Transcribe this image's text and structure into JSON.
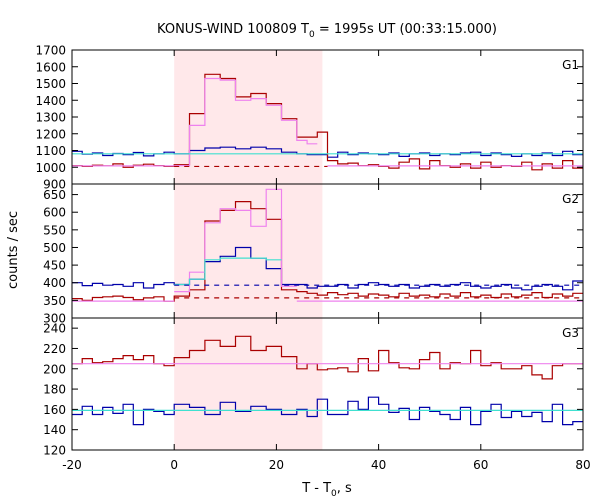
{
  "chart_data": {
    "type": "line",
    "title": "KONUS-WIND 100809 T",
    "title_sub": "0",
    "title_rest": " = 1995s UT (00:33:15.000)",
    "xlabel_main": "T - T",
    "xlabel_sub": "0",
    "xlabel_rest": ", s",
    "ylabel": "counts / sec",
    "xlim": [
      -20,
      80
    ],
    "x_ticks": [
      "-20",
      "0",
      "20",
      "40",
      "60",
      "80"
    ],
    "shaded_interval": [
      0,
      29
    ],
    "bin_edges": [
      -20,
      -18,
      -16,
      -14,
      -12,
      -10,
      -8,
      -6,
      -4,
      -2,
      0,
      3,
      6,
      9,
      12,
      15,
      18,
      21,
      24,
      26,
      28,
      30,
      32,
      34,
      36,
      38,
      40,
      42,
      44,
      46,
      48,
      50,
      52,
      54,
      56,
      58,
      60,
      62,
      64,
      66,
      68,
      70,
      72,
      74,
      76,
      78,
      80
    ],
    "panels": [
      {
        "label": "G1",
        "ylim": [
          900,
          1700
        ],
        "y_ticks": [
          "900",
          "1000",
          "1100",
          "1200",
          "1300",
          "1400",
          "1500",
          "1600",
          "1700"
        ],
        "series": [
          {
            "color": "#0000aa",
            "values": [
              1095,
              1078,
              1085,
              1070,
              1082,
              1075,
              1088,
              1068,
              1080,
              1090,
              1080,
              1100,
              1115,
              1120,
              1110,
              1120,
              1110,
              1090,
              1080,
              1075,
              1075,
              1060,
              1090,
              1075,
              1085,
              1080,
              1075,
              1085,
              1065,
              1080,
              1085,
              1070,
              1080,
              1075,
              1085,
              1090,
              1070,
              1085,
              1075,
              1065,
              1080,
              1070,
              1085,
              1070,
              1095,
              1075
            ]
          },
          {
            "color": "#aa0000",
            "values": [
              1010,
              1005,
              1012,
              1008,
              1020,
              1000,
              1012,
              1018,
              1010,
              1005,
              1015,
              1320,
              1555,
              1530,
              1420,
              1440,
              1380,
              1290,
              1180,
              1180,
              1210,
              1040,
              1020,
              1025,
              1010,
              1015,
              1005,
              995,
              1030,
              1050,
              990,
              1040,
              1010,
              1000,
              1020,
              995,
              1030,
              1000,
              1010,
              1005,
              1030,
              985,
              1020,
              995,
              1040,
              995
            ]
          },
          {
            "color": "#ee82ee",
            "values": [
              null,
              null,
              null,
              null,
              null,
              null,
              null,
              null,
              null,
              null,
              1010,
              1250,
              1530,
              1520,
              1400,
              1410,
              1370,
              1280,
              1160,
              1140,
              null,
              null,
              null,
              null,
              null,
              null,
              null,
              null,
              null,
              null,
              null,
              null,
              null,
              null,
              null,
              null,
              null,
              null,
              null,
              null,
              null,
              null,
              null,
              null,
              null,
              null
            ]
          },
          {
            "color": "#ee82ee",
            "values": [
              1008,
              1008,
              1008,
              1008,
              1008,
              1008,
              1008,
              1008,
              1008,
              1008,
              null,
              null,
              null,
              null,
              null,
              null,
              null,
              null,
              null,
              null,
              null,
              1008,
              1008,
              1008,
              1008,
              1008,
              1008,
              1008,
              1008,
              1008,
              1008,
              1008,
              1008,
              1008,
              1008,
              1008,
              1008,
              1008,
              1008,
              1008,
              1008,
              1008,
              1008,
              1008,
              1008,
              1008
            ]
          },
          {
            "color": "#40e0d0",
            "values": [
              1080,
              1080,
              1080,
              1080,
              1080,
              1080,
              1080,
              1080,
              1080,
              1080,
              1080,
              1080,
              1080,
              1080,
              1080,
              1080,
              1080,
              1080,
              1080,
              1080,
              1080,
              1080,
              1080,
              1080,
              1080,
              1080,
              1080,
              1080,
              1080,
              1080,
              1080,
              1080,
              1080,
              1080,
              1080,
              1080,
              1080,
              1080,
              1080,
              1080,
              1080,
              1080,
              1080,
              1080,
              1080,
              1080
            ]
          }
        ],
        "dashed": [
          {
            "color": "#aa0000",
            "value": 1005,
            "from": 0,
            "to": 30
          }
        ]
      },
      {
        "label": "G2",
        "ylim": [
          300,
          680
        ],
        "y_ticks": [
          "300",
          "350",
          "400",
          "450",
          "500",
          "550",
          "600",
          "650"
        ],
        "series": [
          {
            "color": "#0000aa",
            "values": [
              400,
              392,
              398,
              393,
              395,
              390,
              400,
              385,
              395,
              400,
              395,
              410,
              460,
              475,
              500,
              470,
              440,
              395,
              395,
              385,
              390,
              390,
              395,
              385,
              395,
              400,
              395,
              390,
              395,
              385,
              390,
              395,
              390,
              395,
              400,
              390,
              385,
              390,
              395,
              385,
              380,
              390,
              395,
              390,
              380,
              405
            ]
          },
          {
            "color": "#aa0000",
            "values": [
              355,
              350,
              358,
              360,
              362,
              358,
              352,
              357,
              360,
              348,
              362,
              380,
              575,
              605,
              630,
              610,
              580,
              380,
              375,
              370,
              365,
              372,
              366,
              370,
              362,
              368,
              365,
              360,
              370,
              362,
              365,
              360,
              368,
              362,
              372,
              360,
              365,
              358,
              368,
              360,
              365,
              372,
              358,
              368,
              362,
              370
            ]
          },
          {
            "color": "#ee82ee",
            "values": [
              null,
              null,
              null,
              null,
              null,
              null,
              null,
              null,
              null,
              null,
              375,
              430,
              570,
              610,
              605,
              560,
              665,
              390,
              null,
              null,
              null,
              null,
              null,
              null,
              null,
              null,
              null,
              null,
              null,
              null,
              null,
              null,
              null,
              null,
              null,
              null,
              null,
              null,
              null,
              null,
              null,
              null,
              null,
              null,
              null,
              null
            ]
          },
          {
            "color": "#ee82ee",
            "values": [
              348,
              348,
              348,
              348,
              348,
              348,
              348,
              348,
              348,
              348,
              null,
              null,
              null,
              null,
              null,
              null,
              null,
              null,
              348,
              348,
              348,
              348,
              348,
              348,
              348,
              348,
              348,
              348,
              348,
              348,
              348,
              348,
              348,
              348,
              348,
              348,
              348,
              348,
              348,
              348,
              348,
              348,
              348,
              348,
              348,
              348
            ]
          },
          {
            "color": "#40e0d0",
            "values": [
              null,
              null,
              null,
              null,
              null,
              null,
              null,
              null,
              null,
              null,
              395,
              410,
              465,
              470,
              470,
              470,
              465,
              null,
              null,
              null,
              null,
              null,
              null,
              null,
              null,
              null,
              null,
              null,
              null,
              null,
              null,
              null,
              null,
              null,
              null,
              null,
              null,
              null,
              null,
              null,
              null,
              null,
              null,
              null,
              null,
              null
            ]
          }
        ],
        "dashed": [
          {
            "color": "#0000aa",
            "value": 393,
            "from": 0,
            "to": 80
          },
          {
            "color": "#aa0000",
            "value": 357,
            "from": 0,
            "to": 80
          }
        ]
      },
      {
        "label": "G3",
        "ylim": [
          120,
          250
        ],
        "y_ticks": [
          "120",
          "140",
          "160",
          "180",
          "200",
          "220",
          "240"
        ],
        "series": [
          {
            "color": "#aa0000",
            "values": [
              205,
              210,
              206,
              207,
              210,
              213,
              209,
              213,
              205,
              203,
              211,
              218,
              228,
              222,
              232,
              218,
              222,
              212,
              200,
              205,
              199,
              200,
              201,
              197,
              210,
              198,
              218,
              206,
              201,
              200,
              209,
              216,
              200,
              206,
              205,
              218,
              203,
              206,
              200,
              200,
              203,
              194,
              190,
              203,
              205,
              205
            ]
          },
          {
            "color": "#0000aa",
            "values": [
              155,
              163,
              155,
              162,
              156,
              165,
              145,
              160,
              158,
              155,
              165,
              162,
              155,
              167,
              158,
              163,
              160,
              155,
              160,
              153,
              170,
              155,
              155,
              168,
              160,
              172,
              165,
              157,
              161,
              150,
              162,
              158,
              155,
              150,
              162,
              145,
              158,
              165,
              152,
              158,
              153,
              157,
              148,
              165,
              145,
              148
            ]
          },
          {
            "color": "#ee82ee",
            "values": [
              205,
              205,
              205,
              205,
              205,
              205,
              205,
              205,
              205,
              205,
              205,
              205,
              205,
              205,
              205,
              205,
              205,
              205,
              205,
              205,
              205,
              205,
              205,
              205,
              205,
              205,
              205,
              205,
              205,
              205,
              205,
              205,
              205,
              205,
              205,
              205,
              205,
              205,
              205,
              205,
              205,
              205,
              205,
              205,
              205,
              205
            ]
          },
          {
            "color": "#40e0d0",
            "values": [
              159,
              159,
              159,
              159,
              159,
              159,
              159,
              159,
              159,
              159,
              159,
              159,
              159,
              159,
              159,
              159,
              159,
              159,
              159,
              159,
              159,
              159,
              159,
              159,
              159,
              159,
              159,
              159,
              159,
              159,
              159,
              159,
              159,
              159,
              159,
              159,
              159,
              159,
              159,
              159,
              159,
              159,
              159,
              159,
              159,
              159
            ]
          }
        ],
        "dashed": []
      }
    ]
  }
}
